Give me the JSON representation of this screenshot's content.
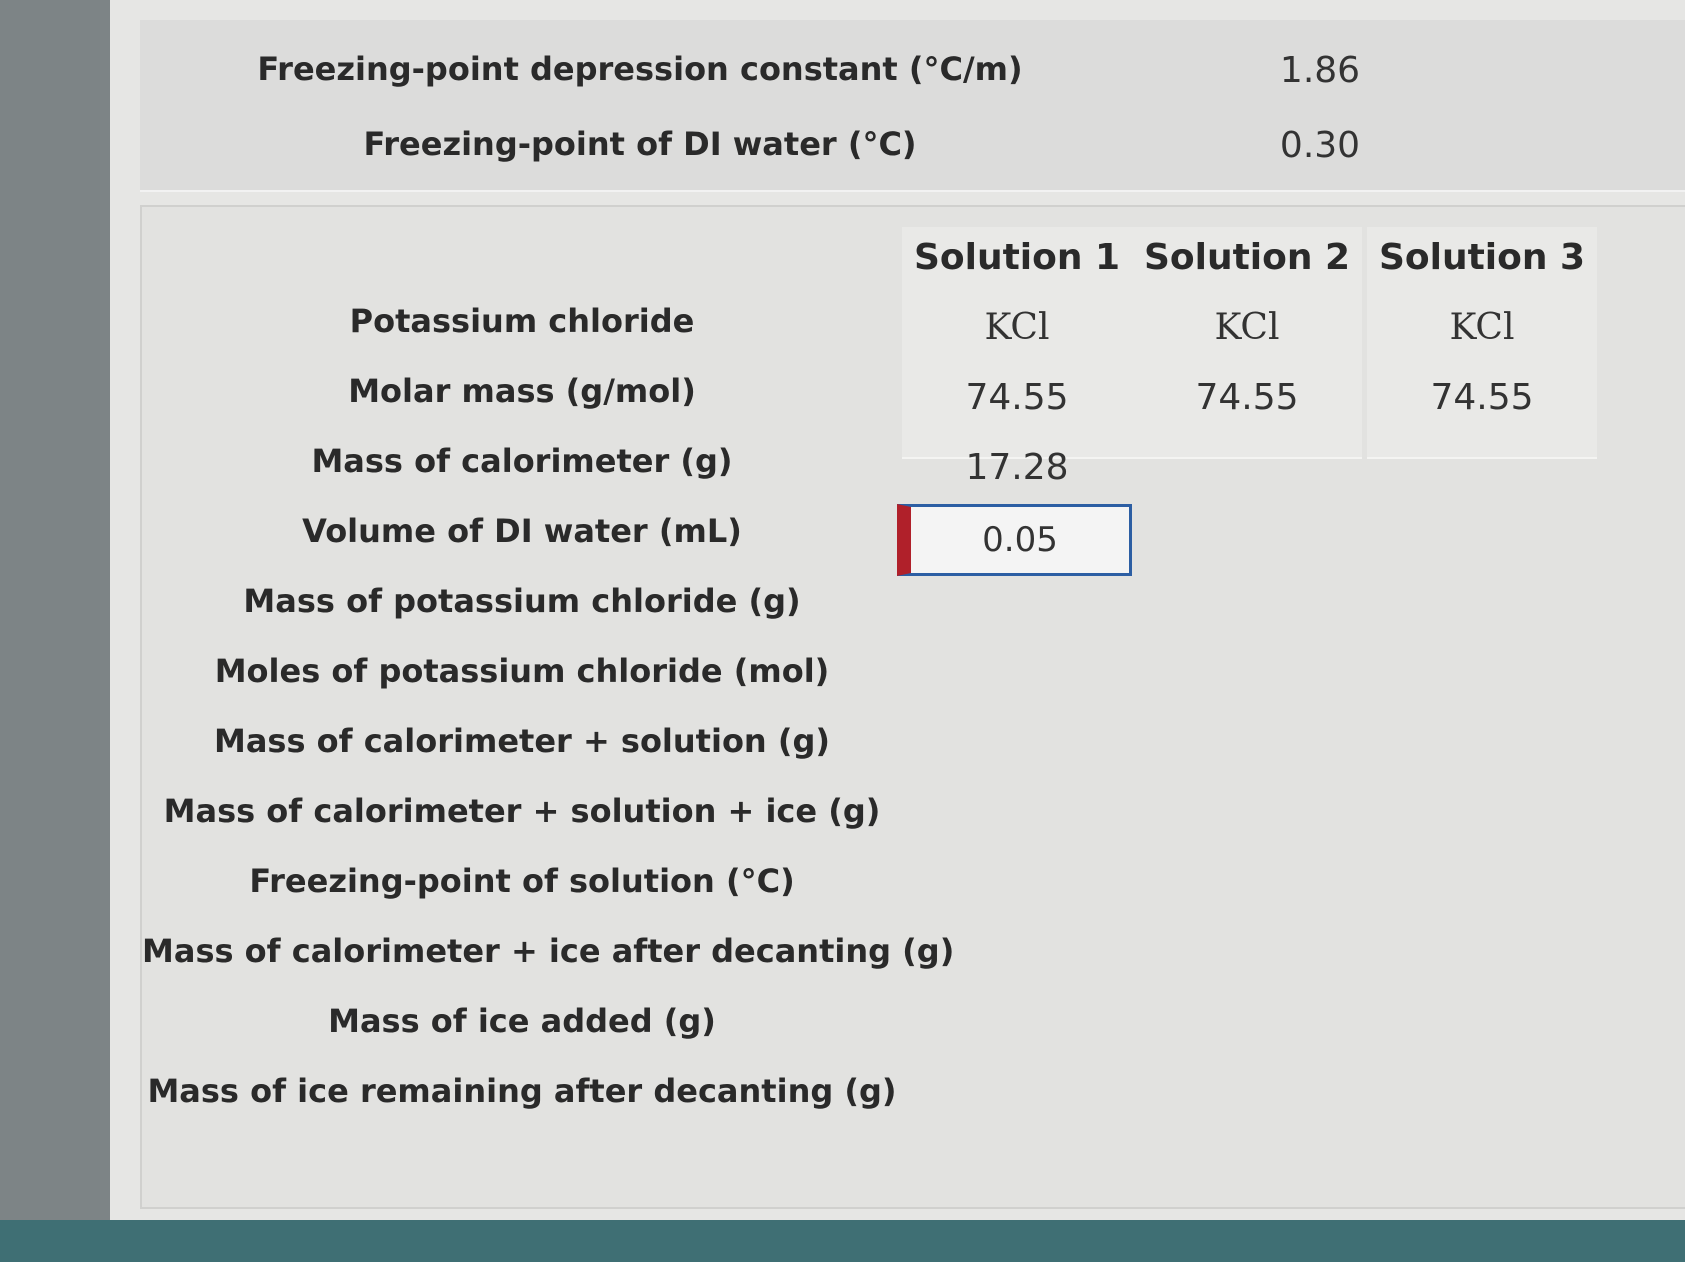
{
  "constants": {
    "rows": [
      {
        "label": "Freezing-point depression constant (°C/m)",
        "value": "1.86"
      },
      {
        "label": "Freezing-point of DI water (°C)",
        "value": "0.30"
      }
    ]
  },
  "table": {
    "headers": [
      "Solution 1",
      "Solution 2",
      "Solution 3"
    ],
    "rows": [
      {
        "label": "Potassium chloride",
        "values": [
          "KCl",
          "KCl",
          "KCl"
        ]
      },
      {
        "label": "Molar mass (g/mol)",
        "values": [
          "74.55",
          "74.55",
          "74.55"
        ]
      },
      {
        "label": "Mass of calorimeter (g)",
        "values": [
          "17.28"
        ]
      },
      {
        "label": "Volume of DI water (mL)",
        "input": "0.05"
      },
      {
        "label": "Mass of potassium chloride (g)"
      },
      {
        "label": "Moles of potassium chloride (mol)"
      },
      {
        "label": "Mass of calorimeter + solution (g)"
      },
      {
        "label": "Mass of calorimeter + solution + ice (g)"
      },
      {
        "label": "Freezing-point of solution (°C)"
      },
      {
        "label": "Mass of calorimeter + ice after decanting (g)"
      },
      {
        "label": "Mass of ice added (g)"
      },
      {
        "label": "Mass of ice remaining after decanting (g)"
      }
    ]
  }
}
